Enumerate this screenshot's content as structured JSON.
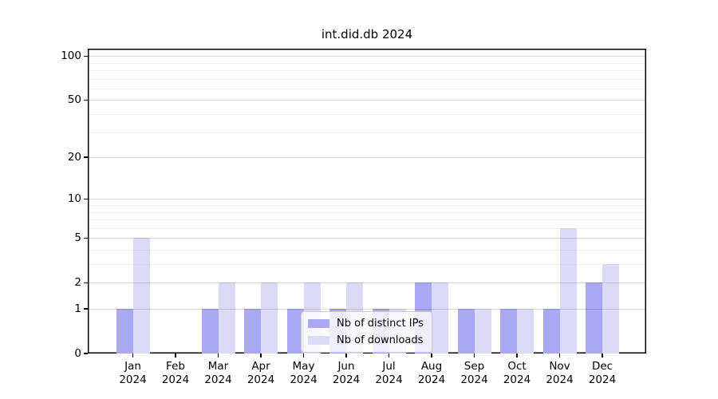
{
  "chart_data": {
    "type": "bar",
    "title": "int.did.db 2024",
    "x": [
      {
        "month": "Jan",
        "year": "2024"
      },
      {
        "month": "Feb",
        "year": "2024"
      },
      {
        "month": "Mar",
        "year": "2024"
      },
      {
        "month": "Apr",
        "year": "2024"
      },
      {
        "month": "May",
        "year": "2024"
      },
      {
        "month": "Jun",
        "year": "2024"
      },
      {
        "month": "Jul",
        "year": "2024"
      },
      {
        "month": "Aug",
        "year": "2024"
      },
      {
        "month": "Sep",
        "year": "2024"
      },
      {
        "month": "Oct",
        "year": "2024"
      },
      {
        "month": "Nov",
        "year": "2024"
      },
      {
        "month": "Dec",
        "year": "2024"
      }
    ],
    "series": [
      {
        "name": "Nb of distinct IPs",
        "color": "#a9a9f3",
        "values": [
          1,
          0,
          1,
          1,
          1,
          1,
          1,
          2,
          1,
          1,
          1,
          2
        ]
      },
      {
        "name": "Nb of downloads",
        "color": "#dbdbf8",
        "values": [
          5,
          0,
          2,
          2,
          2,
          2,
          1,
          2,
          1,
          1,
          6,
          3
        ]
      }
    ],
    "yscale": "log1p",
    "y_major_ticks": [
      0,
      1,
      2,
      5,
      10,
      20,
      50,
      100
    ],
    "y_minor_ticks": [
      3,
      4,
      6,
      7,
      8,
      9,
      30,
      40,
      60,
      70,
      80,
      90
    ],
    "ylim": [
      0,
      111
    ],
    "xlabel": "",
    "ylabel": "",
    "grid": true,
    "legend_position": "lower center",
    "colors": {
      "spine": "#000000",
      "major_grid": "#d9d9d9",
      "minor_grid": "#efefef",
      "legend_border": "#cbcbcb",
      "legend_background": "rgba(255,255,255,0.8)"
    }
  }
}
